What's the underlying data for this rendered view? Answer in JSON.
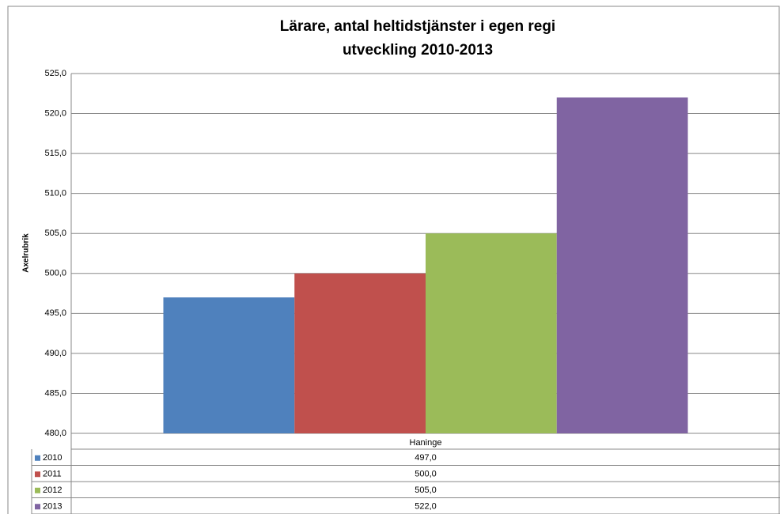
{
  "chart_data": {
    "type": "bar",
    "title": "Lärare, antal heltidstjänster i egen regi",
    "subtitle": "utveckling 2010-2013",
    "y_label": "Axelrubrik",
    "categories": [
      "Haninge"
    ],
    "series": [
      {
        "name": "2010",
        "color": "#4f81bd",
        "values": [
          497
        ],
        "value_labels": [
          "497,0"
        ]
      },
      {
        "name": "2011",
        "color": "#c0504d",
        "values": [
          500
        ],
        "value_labels": [
          "500,0"
        ]
      },
      {
        "name": "2012",
        "color": "#9bbb59",
        "values": [
          505
        ],
        "value_labels": [
          "505,0"
        ]
      },
      {
        "name": "2013",
        "color": "#8064a2",
        "values": [
          522
        ],
        "value_labels": [
          "522,0"
        ]
      }
    ],
    "ylim": [
      480,
      525
    ],
    "yticks": [
      {
        "value": 480,
        "label": "480,0"
      },
      {
        "value": 485,
        "label": "485,0"
      },
      {
        "value": 490,
        "label": "490,0"
      },
      {
        "value": 495,
        "label": "495,0"
      },
      {
        "value": 500,
        "label": "500,0"
      },
      {
        "value": 505,
        "label": "505,0"
      },
      {
        "value": 510,
        "label": "510,0"
      },
      {
        "value": 515,
        "label": "515,0"
      },
      {
        "value": 520,
        "label": "520,0"
      },
      {
        "value": 525,
        "label": "525,0"
      }
    ],
    "grid": true
  }
}
